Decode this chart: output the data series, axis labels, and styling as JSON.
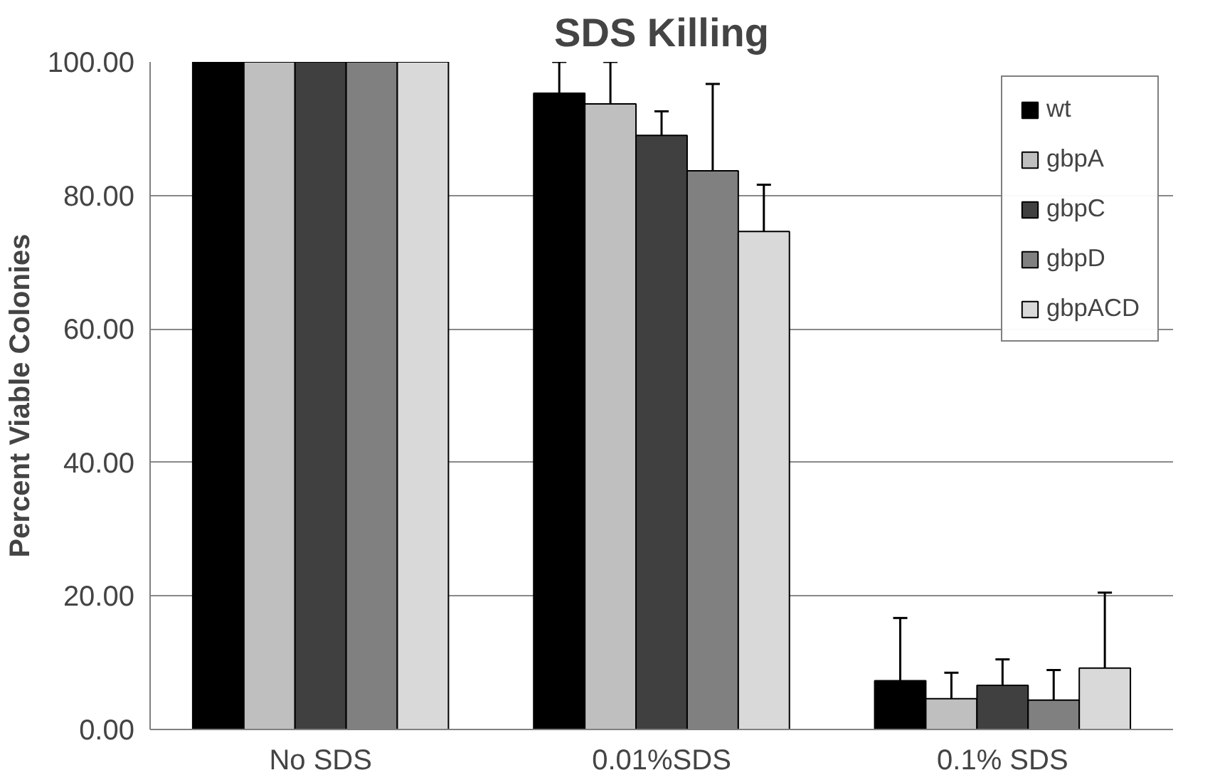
{
  "chart_data": {
    "type": "bar",
    "title": "SDS Killing",
    "ylabel": "Percent Viable Colonies",
    "categories": [
      "No SDS",
      "0.01%SDS",
      "0.1% SDS"
    ],
    "series": [
      {
        "name": "wt",
        "color": "#000000",
        "values": [
          100,
          95.3,
          7.3
        ],
        "errors": [
          null,
          4.7,
          9.4
        ]
      },
      {
        "name": "gbpA",
        "color": "#bfbfbf",
        "values": [
          100,
          93.7,
          4.6
        ],
        "errors": [
          null,
          6.3,
          3.9
        ]
      },
      {
        "name": "gbpC",
        "color": "#404040",
        "values": [
          100,
          89,
          6.6
        ],
        "errors": [
          null,
          3.6,
          3.9
        ]
      },
      {
        "name": "gbpD",
        "color": "#808080",
        "values": [
          100,
          83.7,
          4.4
        ],
        "errors": [
          null,
          13,
          4.5
        ]
      },
      {
        "name": "gbpACD",
        "color": "#d9d9d9",
        "values": [
          100,
          74.6,
          9.2
        ],
        "errors": [
          null,
          7,
          11.3
        ]
      }
    ],
    "ylim": [
      0,
      100
    ],
    "yticks": [
      {
        "value": 0,
        "label": "0.00"
      },
      {
        "value": 20,
        "label": "20.00"
      },
      {
        "value": 40,
        "label": "40.00"
      },
      {
        "value": 60,
        "label": "60.00"
      },
      {
        "value": 80,
        "label": "80.00"
      },
      {
        "value": 100,
        "label": "100.00"
      }
    ],
    "grid": "y",
    "legend": "top right"
  }
}
